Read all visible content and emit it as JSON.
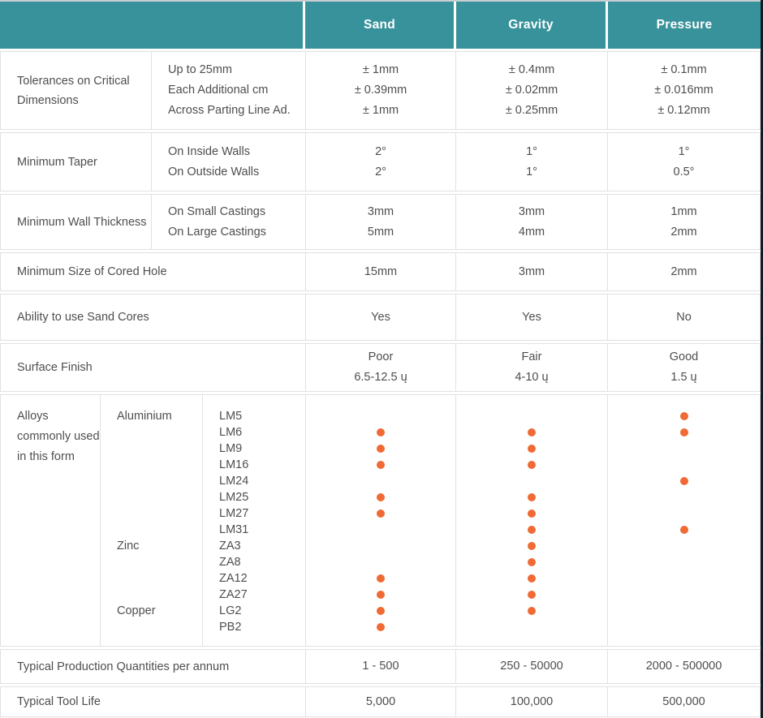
{
  "table": {
    "columns": [
      "Sand",
      "Gravity",
      "Pressure"
    ],
    "rows": [
      {
        "label": "Tolerances on Critical Dimensions",
        "sublabels": [
          "Up to 25mm",
          "Each Additional cm",
          "Across Parting Line Ad."
        ],
        "values": {
          "sand": [
            "± 1mm",
            "± 0.39mm",
            "± 1mm"
          ],
          "gravity": [
            "± 0.4mm",
            "± 0.02mm",
            "± 0.25mm"
          ],
          "pressure": [
            "± 0.1mm",
            "± 0.016mm",
            "± 0.12mm"
          ]
        }
      },
      {
        "label": "Minimum Taper",
        "sublabels": [
          "On Inside Walls",
          "On Outside Walls"
        ],
        "values": {
          "sand": [
            "2°",
            "2°"
          ],
          "gravity": [
            "1°",
            "1°"
          ],
          "pressure": [
            "1°",
            "0.5°"
          ]
        }
      },
      {
        "label": "Minimum Wall Thickness",
        "sublabels": [
          "On Small Castings",
          "On Large Castings"
        ],
        "values": {
          "sand": [
            "3mm",
            "5mm"
          ],
          "gravity": [
            "3mm",
            "4mm"
          ],
          "pressure": [
            "1mm",
            "2mm"
          ]
        }
      },
      {
        "label": "Minimum Size of Cored Hole",
        "values": {
          "sand": [
            "15mm"
          ],
          "gravity": [
            "3mm"
          ],
          "pressure": [
            "2mm"
          ]
        }
      },
      {
        "label": "Ability to use Sand Cores",
        "values": {
          "sand": [
            "Yes"
          ],
          "gravity": [
            "Yes"
          ],
          "pressure": [
            "No"
          ]
        }
      },
      {
        "label": "Surface Finish",
        "values": {
          "sand": [
            "Poor",
            "6.5-12.5 ų"
          ],
          "gravity": [
            "Fair",
            "4-10 ų"
          ],
          "pressure": [
            "Good",
            "1.5 ų"
          ]
        }
      }
    ],
    "alloys": {
      "label": "Alloys commonly used in this form",
      "types": [
        {
          "name": "Aluminium",
          "slot": 0
        },
        {
          "name": "Zinc",
          "slot": 8
        },
        {
          "name": "Copper",
          "slot": 12
        }
      ],
      "codes": [
        "LM5",
        "LM6",
        "LM9",
        "LM16",
        "LM24",
        "LM25",
        "LM27",
        "LM31",
        "ZA3",
        "ZA8",
        "ZA12",
        "ZA27",
        "LG2",
        "PB2"
      ],
      "dots": {
        "sand": [
          1,
          2,
          3,
          5,
          6,
          10,
          11,
          12,
          13
        ],
        "gravity": [
          1,
          2,
          3,
          5,
          6,
          7,
          8,
          9,
          10,
          11,
          12
        ],
        "pressure": [
          0,
          1,
          4,
          7
        ]
      }
    },
    "footer_rows": [
      {
        "label": "Typical Production Quantities per annum",
        "sand": "1 - 500",
        "gravity": "250 - 50000",
        "pressure": "2000 - 500000"
      },
      {
        "label": "Typical Tool Life",
        "sand": "5,000",
        "gravity": "100,000",
        "pressure": "500,000"
      }
    ],
    "colors": {
      "header_bg": "#38929B",
      "dot": "#EF6A35",
      "text": "#4E4E4E",
      "border": "#E1E1E1",
      "right_edge_strip": "#141922"
    }
  }
}
